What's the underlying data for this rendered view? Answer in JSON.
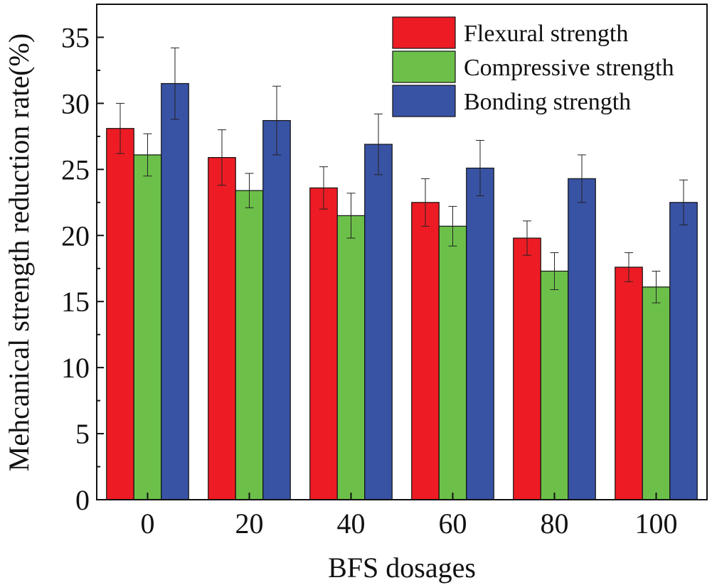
{
  "chart_data": {
    "type": "bar",
    "title": "",
    "xlabel": "BFS dosages",
    "ylabel": "Mehcanical strength reduction rate(%)",
    "categories": [
      "0",
      "20",
      "40",
      "60",
      "80",
      "100"
    ],
    "ylim": [
      0,
      37.5
    ],
    "yticks": [
      "0",
      "5",
      "10",
      "15",
      "20",
      "25",
      "30",
      "35"
    ],
    "legend_position": "top-right",
    "series": [
      {
        "name": "Flexural strength",
        "color": "#ed1c24",
        "values": [
          28.1,
          25.9,
          23.6,
          22.5,
          19.8,
          17.6
        ],
        "errors": [
          1.9,
          2.1,
          1.6,
          1.8,
          1.3,
          1.1
        ]
      },
      {
        "name": "Compressive strength",
        "color": "#6cc04a",
        "values": [
          26.1,
          23.4,
          21.5,
          20.7,
          17.3,
          16.1
        ],
        "errors": [
          1.6,
          1.3,
          1.7,
          1.5,
          1.4,
          1.2
        ]
      },
      {
        "name": "Bonding strength",
        "color": "#3953a4",
        "values": [
          31.5,
          28.7,
          26.9,
          25.1,
          24.3,
          22.5
        ],
        "errors": [
          2.7,
          2.6,
          2.3,
          2.1,
          1.8,
          1.7
        ]
      }
    ]
  }
}
